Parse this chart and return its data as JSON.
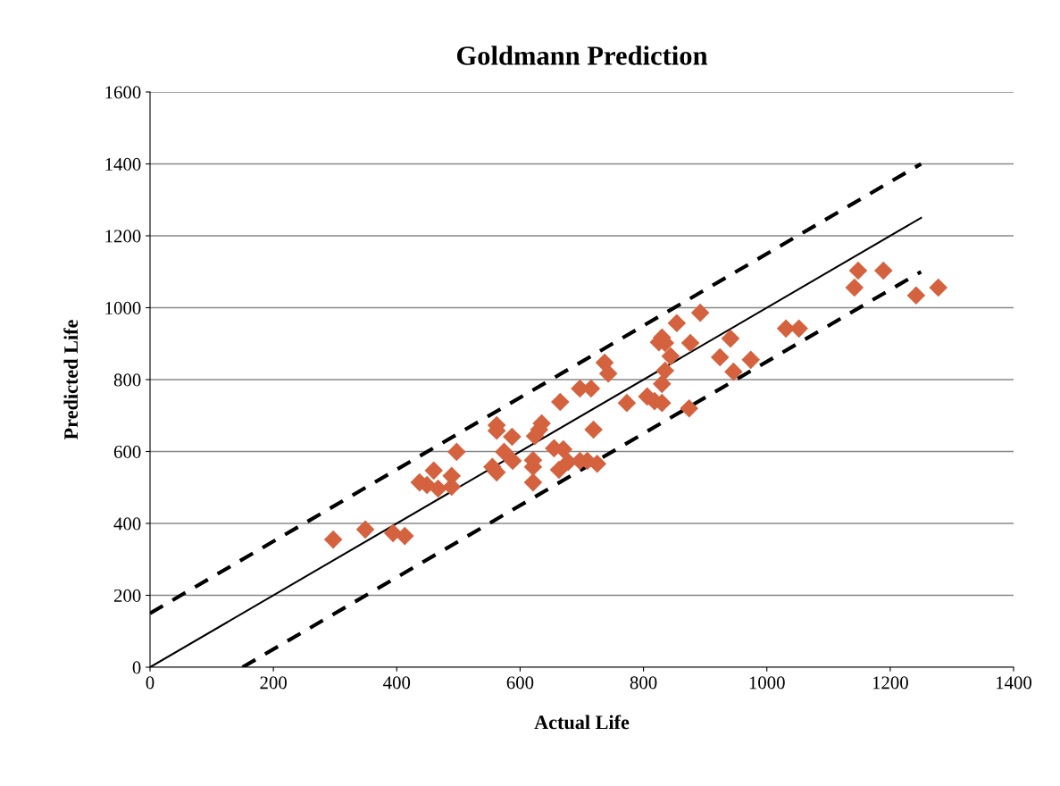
{
  "chart_data": {
    "type": "scatter",
    "title": "Goldmann Prediction",
    "xlabel": "Actual Life",
    "ylabel": "Predicted Life",
    "xlim": [
      0,
      1400
    ],
    "xticks": [
      0,
      200,
      400,
      600,
      800,
      1000,
      1200,
      1400
    ],
    "ylim": [
      0,
      1600
    ],
    "yticks": [
      0,
      200,
      400,
      600,
      800,
      1000,
      1200,
      1400,
      1600
    ],
    "grid": "y",
    "legend": false,
    "series": [
      {
        "color": "#d4623f",
        "marker": "diamond",
        "x": [
          297,
          349,
          394,
          413,
          437,
          449,
          460,
          467,
          489,
          489,
          497,
          555,
          562,
          562,
          562,
          574,
          587,
          588,
          621,
          621,
          621,
          624,
          631,
          635,
          655,
          665,
          663,
          670,
          678,
          697,
          697,
          709,
          715,
          719,
          725,
          737,
          743,
          773,
          806,
          818,
          825,
          830,
          830,
          830,
          835,
          835,
          844,
          854,
          874,
          876,
          892,
          924,
          941,
          946,
          974,
          1031,
          1052,
          1142,
          1148,
          1189,
          1242,
          1278
        ],
        "values": [
          355,
          383,
          373,
          365,
          514,
          507,
          547,
          497,
          532,
          502,
          599,
          557,
          542,
          673,
          658,
          599,
          641,
          574,
          576,
          514,
          557,
          643,
          661,
          678,
          609,
          738,
          549,
          606,
          571,
          775,
          574,
          574,
          775,
          661,
          566,
          847,
          817,
          735,
          753,
          740,
          904,
          917,
          735,
          788,
          902,
          825,
          865,
          957,
          720,
          902,
          986,
          862,
          914,
          822,
          855,
          942,
          942,
          1056,
          1103,
          1103,
          1034,
          1056
        ]
      },
      {
        "type": "line",
        "color": "#000000",
        "marker": "none",
        "line_style": "solid",
        "x": [
          0,
          1250
        ],
        "values": [
          0,
          1250
        ]
      },
      {
        "type": "line",
        "color": "#000000",
        "marker": "none",
        "line_style": "dashed",
        "x": [
          0,
          1250
        ],
        "values": [
          150,
          1400
        ]
      },
      {
        "type": "line",
        "color": "#000000",
        "marker": "none",
        "line_style": "dashed",
        "x": [
          150,
          1250
        ],
        "values": [
          0,
          1100
        ]
      }
    ]
  }
}
